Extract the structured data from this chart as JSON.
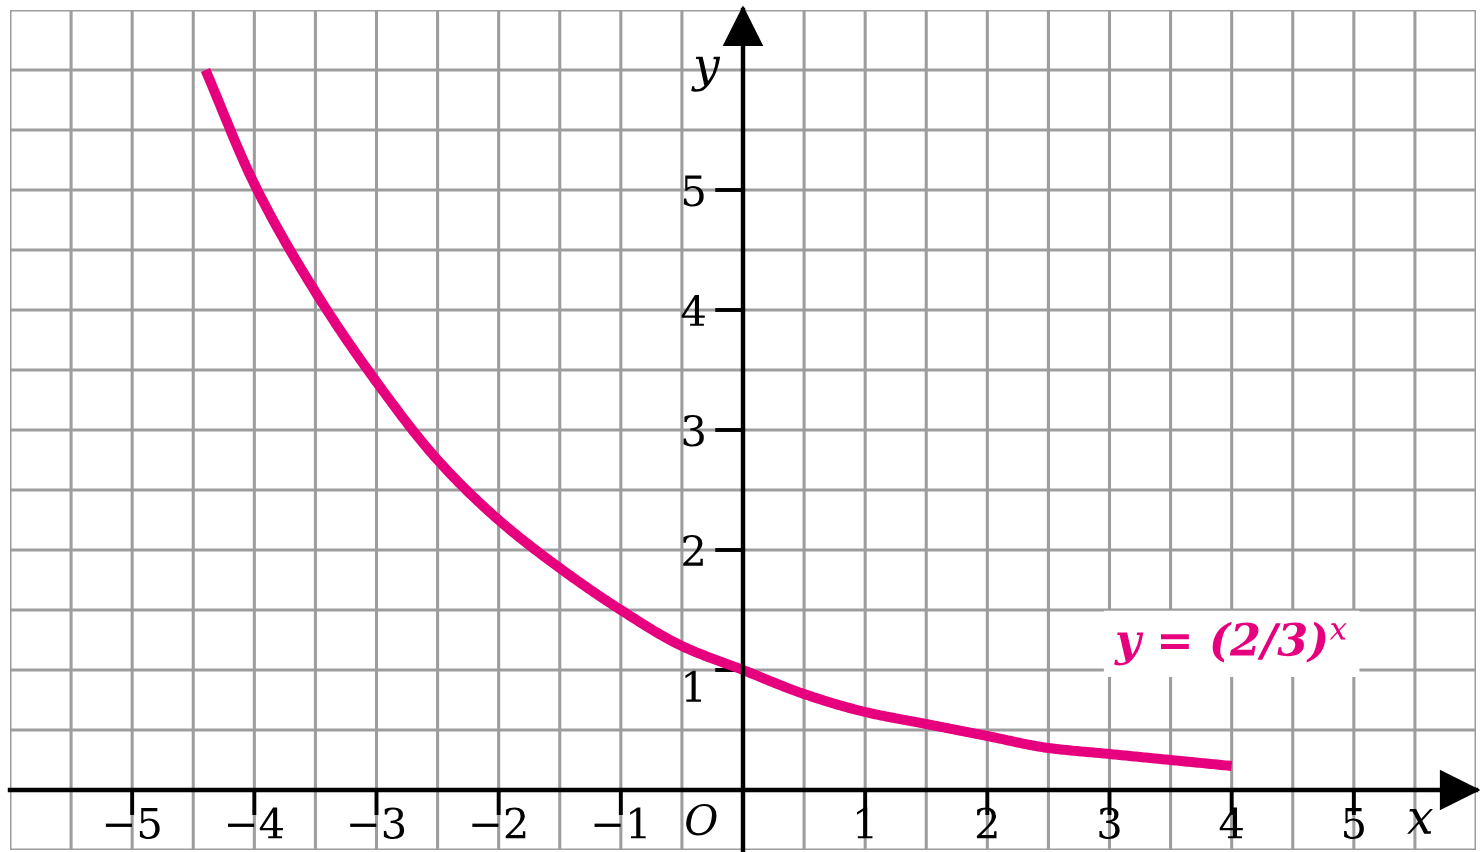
{
  "chart_data": {
    "type": "line",
    "xlabel": "x",
    "ylabel": "y",
    "x": [
      -4.4,
      -4,
      -3.5,
      -3,
      -2.5,
      -2,
      -1.5,
      -1,
      -0.5,
      0,
      0.5,
      1,
      1.5,
      2,
      2.5,
      3,
      3.5,
      4
    ],
    "series": [
      {
        "name": "y = (2/3)$^{x}$",
        "color": "#e6007e",
        "values": [
          6.0,
          5.05,
          4.15,
          3.4,
          2.75,
          2.25,
          1.85,
          1.5,
          1.2,
          1,
          0.8,
          0.65,
          0.55,
          0.45,
          0.35,
          0.3,
          0.25,
          0.2
        ]
      }
    ],
    "xlim": [
      -6,
      6
    ],
    "ylim": [
      -0.5,
      6.5
    ],
    "xticks": [
      {
        "value": -6,
        "label": null
      },
      {
        "value": -5.5,
        "label": null
      },
      {
        "value": -5,
        "label": "−5"
      },
      {
        "value": -4.5,
        "label": null
      },
      {
        "value": -4,
        "label": "−4"
      },
      {
        "value": -3.5,
        "label": null
      },
      {
        "value": -3,
        "label": "−3"
      },
      {
        "value": -2.5,
        "label": null
      },
      {
        "value": -2,
        "label": "−2"
      },
      {
        "value": -1.5,
        "label": null
      },
      {
        "value": -1,
        "label": "−1"
      },
      {
        "value": -0.5,
        "label": null
      },
      {
        "value": 0,
        "label": null
      },
      {
        "value": 0.5,
        "label": null
      },
      1,
      {
        "value": 1.5,
        "label": null
      },
      2,
      {
        "value": 2.5,
        "label": null
      },
      3,
      {
        "value": 3.5,
        "label": null
      },
      4,
      {
        "value": 4.5,
        "label": null
      },
      5,
      {
        "value": 5.5,
        "label": null
      },
      {
        "value": 6,
        "label": null
      }
    ],
    "yticks": [
      {
        "value": -0.5,
        "label": null
      },
      {
        "value": 0,
        "label": null
      },
      {
        "value": 0.5,
        "label": null
      },
      1,
      {
        "value": 1.5,
        "label": null
      },
      2,
      {
        "value": 2.5,
        "label": null
      },
      3,
      {
        "value": 3.5,
        "label": null
      },
      4,
      {
        "value": 4.5,
        "label": null
      },
      5,
      {
        "value": 5.5,
        "label": null
      },
      {
        "value": 6,
        "label": null
      },
      {
        "value": 6.5,
        "label": null
      }
    ],
    "grid": true,
    "annotations": [
      "O"
    ]
  }
}
